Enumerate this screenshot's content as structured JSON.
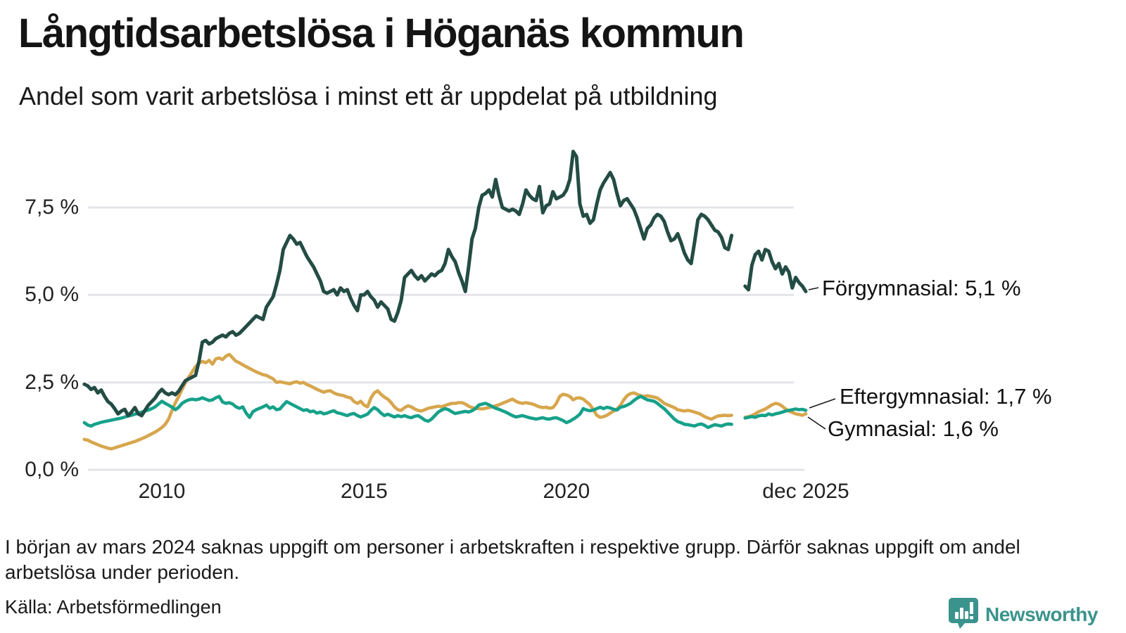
{
  "title": "Långtidsarbetslösa i Höganäs kommun",
  "subtitle": "Andel som varit arbetslösa i minst ett år uppdelat på utbildning",
  "footnote": "I början av mars 2024 saknas uppgift om personer i arbetskraften i respektive grupp. Därför saknas uppgift om andel arbetslösa under perioden.",
  "source": "Källa: Arbetsförmedlingen",
  "branding": {
    "logo_text": "Newsworthy",
    "logo_icon": "bar-chart-speech-bubble",
    "color": "#3A938C"
  },
  "chart_data": {
    "type": "line",
    "title": "Långtidsarbetslösa i Höganäs kommun",
    "subtitle": "Andel som varit arbetslösa i minst ett år uppdelat på utbildning",
    "x_interval": "monthly",
    "x_start": "2008-02",
    "x_end": "2025-12",
    "missing_period": "mars 2024 – maj 2024",
    "grid": "horizontal",
    "ylim": [
      0,
      9.3
    ],
    "y_ticks": [
      "7,5 %",
      "5,0 %",
      "2,5 %",
      "0,0 %"
    ],
    "y_tick_values": [
      7.5,
      5.0,
      2.5,
      0.0
    ],
    "x_ticks": [
      "2010",
      "2015",
      "2020",
      "dec 2025"
    ],
    "x_tick_indices": [
      23,
      83,
      143,
      214
    ],
    "gridline_color": "#E4E4E9",
    "series": [
      {
        "name": "Förgymnasial",
        "color": "#234C44",
        "end_value": 5.1,
        "end_label": "Förgymnasial: 5,1 %",
        "values": [
          2.45,
          2.4,
          2.3,
          2.35,
          2.2,
          2.28,
          2.1,
          1.95,
          1.88,
          1.75,
          1.6,
          1.68,
          1.73,
          1.55,
          1.65,
          1.78,
          1.6,
          1.55,
          1.7,
          1.85,
          1.95,
          2.05,
          2.2,
          2.3,
          2.2,
          2.15,
          2.2,
          2.15,
          2.25,
          2.4,
          2.55,
          2.6,
          2.65,
          2.7,
          3.1,
          3.65,
          3.7,
          3.6,
          3.65,
          3.75,
          3.8,
          3.85,
          3.8,
          3.9,
          3.95,
          3.85,
          3.9,
          4.0,
          4.1,
          4.2,
          4.3,
          4.4,
          4.35,
          4.3,
          4.65,
          4.8,
          4.95,
          5.3,
          5.7,
          6.3,
          6.5,
          6.7,
          6.6,
          6.45,
          6.5,
          6.3,
          6.1,
          5.95,
          5.8,
          5.6,
          5.4,
          5.1,
          5.05,
          5.1,
          5.15,
          5.0,
          5.2,
          5.1,
          5.15,
          4.9,
          4.7,
          4.55,
          5.0,
          5.0,
          5.1,
          4.95,
          4.85,
          4.65,
          4.8,
          4.7,
          4.6,
          4.3,
          4.25,
          4.5,
          4.85,
          5.5,
          5.6,
          5.7,
          5.55,
          5.45,
          5.55,
          5.4,
          5.5,
          5.6,
          5.55,
          5.65,
          5.7,
          5.9,
          6.3,
          6.1,
          5.95,
          5.65,
          5.4,
          5.1,
          5.8,
          6.6,
          6.9,
          7.5,
          7.85,
          7.9,
          8.0,
          7.8,
          8.3,
          7.85,
          7.5,
          7.45,
          7.4,
          7.45,
          7.4,
          7.3,
          7.6,
          8.0,
          7.85,
          7.75,
          7.7,
          8.1,
          7.35,
          7.55,
          7.6,
          7.95,
          7.75,
          7.8,
          7.85,
          8.0,
          8.3,
          9.1,
          8.95,
          7.6,
          7.25,
          7.3,
          7.05,
          7.15,
          7.6,
          8.0,
          8.2,
          8.35,
          8.5,
          8.3,
          7.9,
          7.55,
          7.7,
          7.75,
          7.6,
          7.45,
          7.2,
          6.9,
          6.6,
          6.9,
          7.0,
          7.2,
          7.3,
          7.25,
          7.1,
          6.8,
          6.55,
          6.6,
          6.75,
          6.5,
          6.2,
          6.0,
          5.9,
          6.5,
          7.15,
          7.3,
          7.25,
          7.15,
          7.0,
          6.85,
          6.8,
          6.65,
          6.35,
          6.3,
          6.7,
          null,
          null,
          null,
          5.25,
          5.15,
          5.85,
          6.15,
          6.25,
          6.0,
          6.3,
          6.25,
          5.95,
          5.75,
          5.9,
          5.6,
          5.8,
          5.65,
          5.2,
          5.5,
          5.35,
          5.25,
          5.1
        ]
      },
      {
        "name": "Eftergymnasial",
        "color": "#16A18A",
        "end_value": 1.7,
        "end_label": "Eftergymnasial: 1,7 %",
        "values": [
          1.35,
          1.28,
          1.25,
          1.3,
          1.33,
          1.36,
          1.38,
          1.4,
          1.42,
          1.44,
          1.46,
          1.48,
          1.51,
          1.54,
          1.56,
          1.59,
          1.62,
          1.65,
          1.68,
          1.71,
          1.75,
          1.8,
          1.88,
          1.96,
          1.9,
          1.85,
          1.79,
          1.72,
          1.79,
          1.9,
          1.96,
          2.0,
          2.02,
          2.0,
          2.02,
          2.06,
          2.02,
          1.98,
          2.0,
          2.06,
          2.1,
          1.94,
          1.9,
          1.92,
          1.88,
          1.8,
          1.76,
          1.8,
          1.62,
          1.5,
          1.66,
          1.72,
          1.76,
          1.8,
          1.85,
          1.76,
          1.8,
          1.72,
          1.74,
          1.85,
          1.95,
          1.9,
          1.85,
          1.8,
          1.75,
          1.7,
          1.72,
          1.66,
          1.68,
          1.62,
          1.65,
          1.6,
          1.62,
          1.66,
          1.69,
          1.63,
          1.61,
          1.58,
          1.55,
          1.59,
          1.61,
          1.55,
          1.51,
          1.55,
          1.59,
          1.7,
          1.78,
          1.72,
          1.62,
          1.55,
          1.59,
          1.55,
          1.51,
          1.55,
          1.52,
          1.55,
          1.51,
          1.49,
          1.53,
          1.55,
          1.49,
          1.42,
          1.39,
          1.45,
          1.55,
          1.65,
          1.71,
          1.75,
          1.72,
          1.66,
          1.61,
          1.63,
          1.65,
          1.67,
          1.65,
          1.69,
          1.75,
          1.85,
          1.88,
          1.9,
          1.86,
          1.81,
          1.76,
          1.73,
          1.69,
          1.65,
          1.6,
          1.55,
          1.51,
          1.53,
          1.55,
          1.52,
          1.49,
          1.47,
          1.45,
          1.47,
          1.49,
          1.46,
          1.45,
          1.48,
          1.49,
          1.45,
          1.41,
          1.35,
          1.39,
          1.45,
          1.51,
          1.59,
          1.75,
          1.71,
          1.69,
          1.71,
          1.75,
          1.79,
          1.75,
          1.79,
          1.77,
          1.73,
          1.71,
          1.79,
          1.81,
          1.85,
          1.9,
          1.98,
          2.05,
          2.1,
          2.05,
          2.0,
          1.98,
          1.96,
          1.9,
          1.82,
          1.75,
          1.65,
          1.55,
          1.45,
          1.38,
          1.35,
          1.3,
          1.29,
          1.27,
          1.25,
          1.29,
          1.31,
          1.27,
          1.21,
          1.25,
          1.29,
          1.27,
          1.25,
          1.29,
          1.31,
          1.3,
          null,
          null,
          null,
          1.48,
          1.5,
          1.52,
          1.5,
          1.54,
          1.56,
          1.55,
          1.6,
          1.57,
          1.6,
          1.62,
          1.65,
          1.68,
          1.7,
          1.72,
          1.74,
          1.72,
          1.73,
          1.7
        ]
      },
      {
        "name": "Gymnasial",
        "color": "#D7A64D",
        "end_value": 1.6,
        "end_label": "Gymnasial: 1,6 %",
        "values": [
          0.87,
          0.85,
          0.8,
          0.76,
          0.72,
          0.68,
          0.65,
          0.62,
          0.6,
          0.63,
          0.66,
          0.69,
          0.72,
          0.75,
          0.78,
          0.81,
          0.85,
          0.89,
          0.93,
          0.98,
          1.03,
          1.08,
          1.14,
          1.21,
          1.3,
          1.45,
          1.7,
          1.92,
          2.1,
          2.3,
          2.5,
          2.65,
          2.8,
          2.95,
          3.05,
          3.1,
          3.06,
          3.13,
          3.02,
          3.17,
          3.2,
          3.15,
          3.25,
          3.3,
          3.2,
          3.1,
          3.06,
          3.0,
          2.95,
          2.9,
          2.85,
          2.8,
          2.76,
          2.72,
          2.7,
          2.65,
          2.6,
          2.5,
          2.52,
          2.5,
          2.48,
          2.46,
          2.5,
          2.52,
          2.48,
          2.5,
          2.44,
          2.4,
          2.35,
          2.3,
          2.26,
          2.22,
          2.25,
          2.26,
          2.2,
          2.16,
          2.14,
          2.12,
          2.08,
          2.06,
          1.95,
          1.9,
          1.96,
          1.85,
          1.8,
          2.05,
          2.2,
          2.26,
          2.16,
          2.08,
          2.02,
          1.92,
          1.8,
          1.72,
          1.7,
          1.78,
          1.83,
          1.8,
          1.74,
          1.7,
          1.68,
          1.72,
          1.76,
          1.78,
          1.8,
          1.82,
          1.8,
          1.84,
          1.87,
          1.9,
          1.9,
          1.92,
          1.92,
          1.88,
          1.82,
          1.78,
          1.76,
          1.75,
          1.74,
          1.76,
          1.78,
          1.8,
          1.83,
          1.86,
          1.9,
          1.94,
          1.98,
          2.02,
          1.96,
          1.92,
          1.9,
          1.92,
          1.9,
          1.88,
          1.84,
          1.8,
          1.78,
          1.79,
          1.76,
          1.78,
          1.9,
          2.1,
          2.16,
          2.14,
          2.1,
          2.0,
          2.05,
          2.06,
          2.02,
          1.94,
          1.86,
          1.72,
          1.56,
          1.5,
          1.52,
          1.56,
          1.62,
          1.68,
          1.74,
          1.84,
          2.0,
          2.12,
          2.18,
          2.2,
          2.16,
          2.12,
          2.1,
          2.12,
          2.1,
          2.08,
          2.05,
          1.98,
          1.9,
          1.86,
          1.82,
          1.78,
          1.72,
          1.7,
          1.68,
          1.7,
          1.68,
          1.65,
          1.62,
          1.58,
          1.52,
          1.48,
          1.45,
          1.5,
          1.54,
          1.55,
          1.56,
          1.55,
          1.56,
          null,
          null,
          null,
          1.5,
          1.52,
          1.55,
          1.6,
          1.66,
          1.7,
          1.74,
          1.8,
          1.86,
          1.9,
          1.88,
          1.82,
          1.74,
          1.68,
          1.64,
          1.6,
          1.58,
          1.56,
          1.6
        ]
      }
    ]
  }
}
